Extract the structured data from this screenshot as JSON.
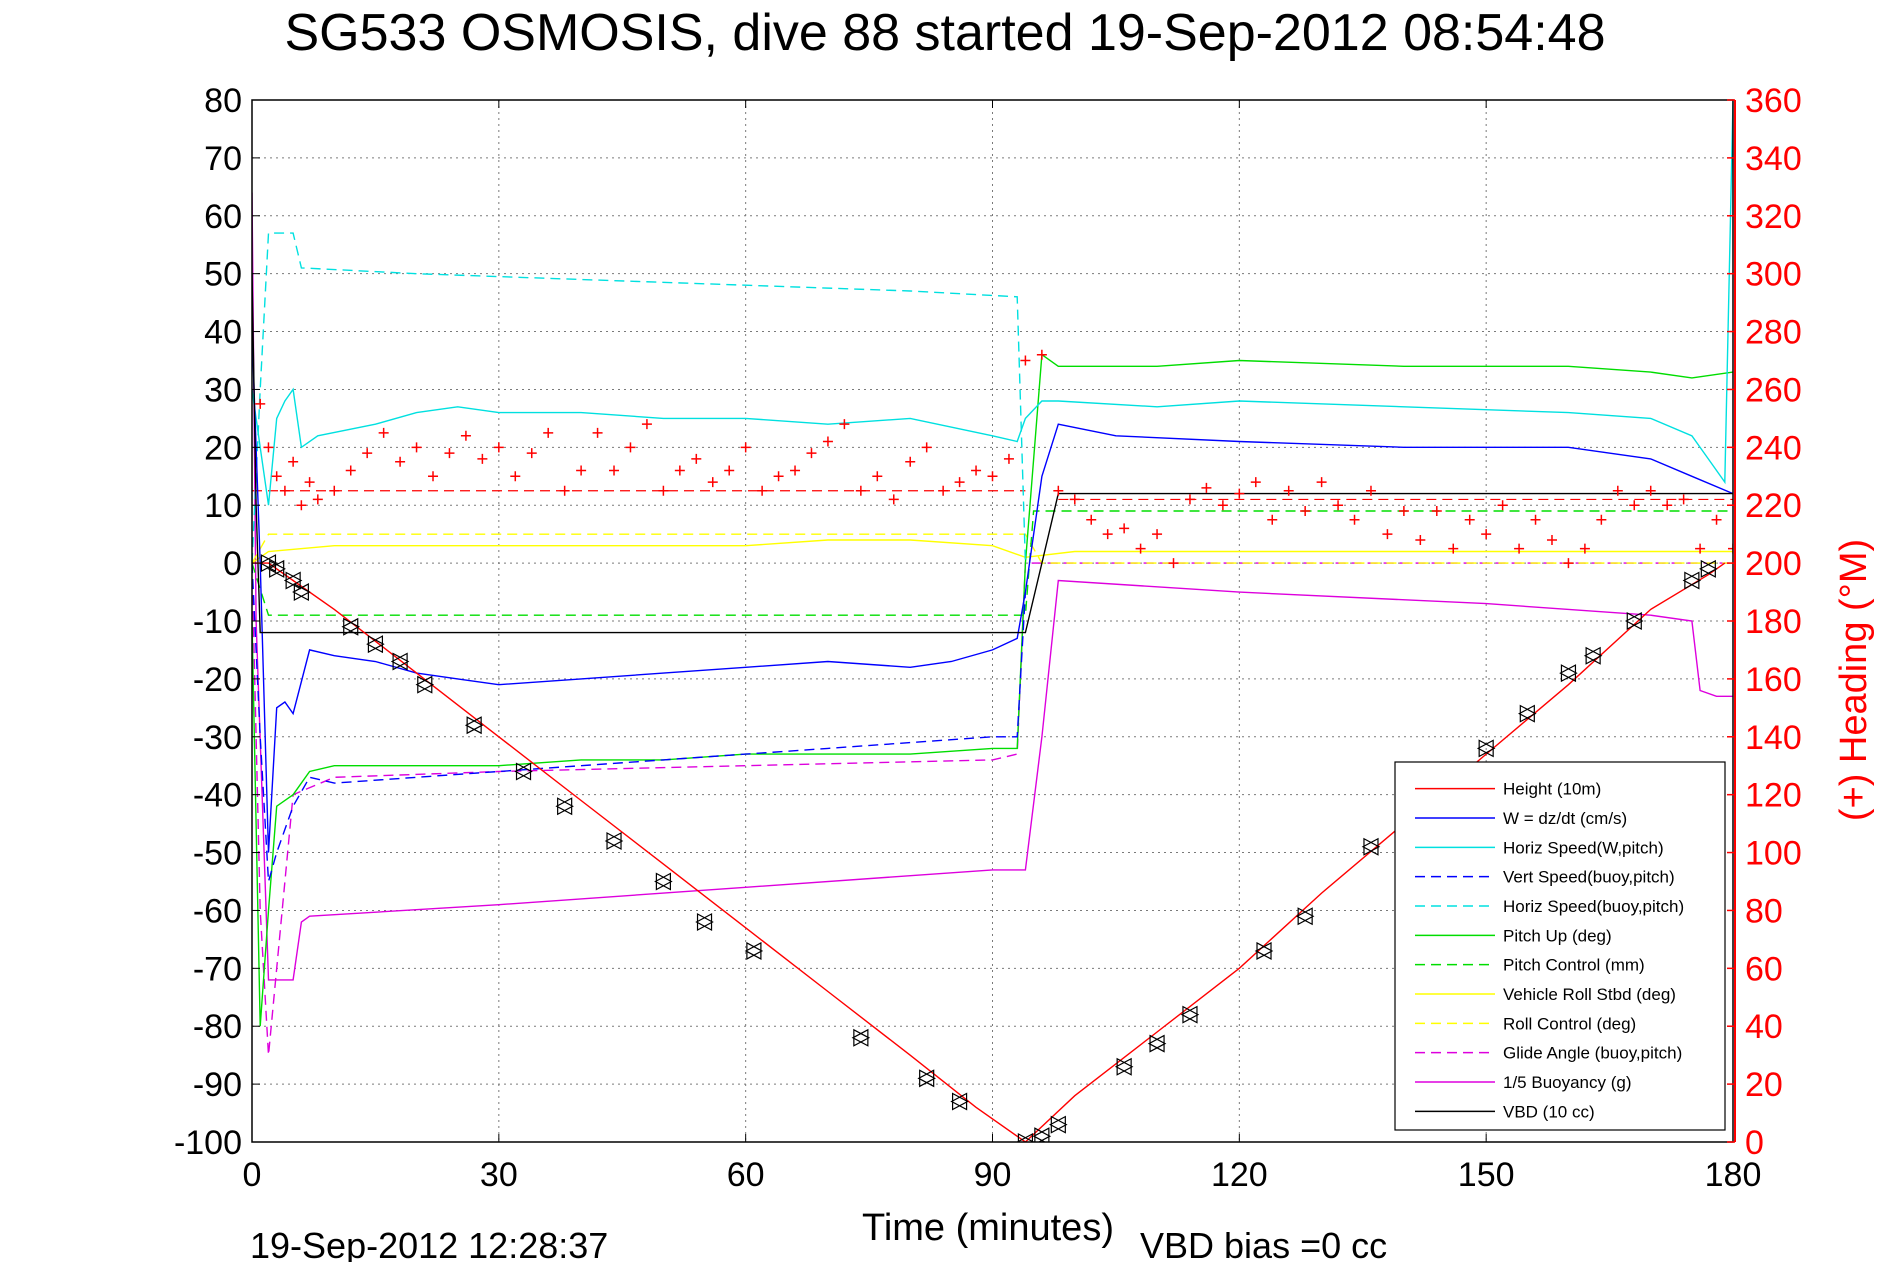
{
  "chart_data": {
    "type": "line",
    "title": "SG533 OSMOSIS, dive 88 started 19-Sep-2012 08:54:48",
    "xlabel": "Time (minutes)",
    "ylabel_right": "(+) Heading (°M)",
    "footer_left": "19-Sep-2012 12:28:37",
    "footer_right": "VBD bias =0 cc",
    "xlim": [
      0,
      180
    ],
    "ylim": [
      -100,
      80
    ],
    "ylim_right": [
      0,
      360
    ],
    "xticks": [
      0,
      30,
      60,
      90,
      120,
      150,
      180
    ],
    "xtick_labels": [
      "0",
      "30",
      "60",
      "90",
      "120",
      "150",
      "180"
    ],
    "yticks": [
      80,
      70,
      60,
      50,
      40,
      30,
      20,
      10,
      0,
      -10,
      -20,
      -30,
      -40,
      -50,
      -60,
      -70,
      -80,
      -90,
      -100
    ],
    "ytick_labels": [
      "80",
      "70",
      "60",
      "50",
      "40",
      "30",
      "20",
      "10",
      "0",
      "-10",
      "-20",
      "-30",
      "-40",
      "-50",
      "-60",
      "-70",
      "-80",
      "-90",
      "-100"
    ],
    "yticks_right": [
      360,
      340,
      320,
      300,
      280,
      260,
      240,
      220,
      200,
      180,
      160,
      140,
      120,
      100,
      80,
      60,
      40,
      20,
      0
    ],
    "ytick_labels_right": [
      "360",
      "340",
      "320",
      "300",
      "280",
      "260",
      "240",
      "220",
      "200",
      "180",
      "160",
      "140",
      "120",
      "100",
      "80",
      "60",
      "40",
      "20",
      "0"
    ],
    "grid": true,
    "legend_position": "bottom-right",
    "series": [
      {
        "name": "Height (10m)",
        "color": "#ff0000",
        "style": "solid",
        "x": [
          0,
          2,
          5,
          10,
          20,
          30,
          40,
          50,
          60,
          70,
          80,
          88,
          94,
          100,
          110,
          120,
          130,
          140,
          150,
          160,
          170,
          177,
          179
        ],
        "y": [
          0,
          0,
          -3,
          -8,
          -19,
          -30,
          -41,
          -52,
          -63,
          -74,
          -85,
          -94,
          -100,
          -92,
          -81,
          -70,
          -57,
          -45,
          -33,
          -21,
          -8,
          -2,
          0
        ]
      },
      {
        "name": "W = dz/dt (cm/s)",
        "color": "#0000ff",
        "style": "solid",
        "x": [
          0,
          1,
          2,
          3,
          4,
          5,
          7,
          10,
          15,
          20,
          25,
          30,
          40,
          50,
          60,
          70,
          80,
          85,
          90,
          93,
          94,
          96,
          98,
          105,
          120,
          140,
          160,
          170,
          175,
          180
        ],
        "y": [
          40,
          0,
          -50,
          -25,
          -24,
          -26,
          -15,
          -16,
          -17,
          -19,
          -20,
          -21,
          -20,
          -19,
          -18,
          -17,
          -18,
          -17,
          -15,
          -13,
          -5,
          15,
          24,
          22,
          21,
          20,
          20,
          18,
          15,
          12
        ]
      },
      {
        "name": "Horiz Speed(W,pitch)",
        "color": "#00e0e0",
        "style": "solid",
        "x": [
          0,
          1,
          2,
          3,
          4,
          5,
          6,
          8,
          15,
          20,
          25,
          30,
          40,
          50,
          60,
          70,
          80,
          90,
          93,
          94,
          96,
          98,
          110,
          120,
          140,
          160,
          170,
          175,
          177,
          179,
          180
        ],
        "y": [
          30,
          20,
          10,
          25,
          28,
          30,
          20,
          22,
          24,
          26,
          27,
          26,
          26,
          25,
          25,
          24,
          25,
          22,
          21,
          25,
          28,
          28,
          27,
          28,
          27,
          26,
          25,
          22,
          18,
          14,
          80
        ]
      },
      {
        "name": "Vert Speed(buoy,pitch)",
        "color": "#0000ff",
        "style": "dashed",
        "x": [
          0,
          1,
          2,
          3,
          5,
          7,
          10,
          20,
          30,
          40,
          50,
          60,
          70,
          80,
          90,
          93,
          94
        ],
        "y": [
          0,
          -30,
          -55,
          -50,
          -42,
          -37,
          -38,
          -37,
          -36,
          -35,
          -34,
          -33,
          -32,
          -31,
          -30,
          -30,
          -5
        ]
      },
      {
        "name": "Horiz Speed(buoy,pitch)",
        "color": "#00e0e0",
        "style": "dashed",
        "x": [
          0,
          1,
          2,
          5,
          6,
          20,
          40,
          60,
          80,
          93,
          94
        ],
        "y": [
          0,
          30,
          57,
          57,
          51,
          50,
          49,
          48,
          47,
          46,
          0
        ]
      },
      {
        "name": "Pitch Up (deg)",
        "color": "#00dd00",
        "style": "solid",
        "x": [
          0,
          1,
          2,
          3,
          5,
          7,
          10,
          20,
          30,
          40,
          50,
          60,
          70,
          80,
          90,
          93,
          94,
          96,
          98,
          110,
          120,
          140,
          160,
          170,
          175,
          180
        ],
        "y": [
          -10,
          -80,
          -60,
          -42,
          -40,
          -36,
          -35,
          -35,
          -35,
          -34,
          -34,
          -33,
          -33,
          -33,
          -32,
          -32,
          0,
          36,
          34,
          34,
          35,
          34,
          34,
          33,
          32,
          33
        ]
      },
      {
        "name": "Pitch Control (mm)",
        "color": "#00dd00",
        "style": "dashed",
        "x": [
          0,
          2,
          94,
          95,
          180
        ],
        "y": [
          0,
          -9,
          -9,
          9,
          9
        ]
      },
      {
        "name": "Vehicle Roll Stbd (deg)",
        "color": "#ffff00",
        "style": "solid",
        "x": [
          0,
          2,
          10,
          20,
          30,
          40,
          50,
          60,
          70,
          80,
          90,
          94,
          100,
          110,
          120,
          140,
          160,
          170,
          180
        ],
        "y": [
          0,
          2,
          3,
          3,
          3,
          3,
          3,
          3,
          4,
          4,
          3,
          1,
          2,
          2,
          2,
          2,
          2,
          2,
          2
        ]
      },
      {
        "name": "Roll Control (deg)",
        "color": "#ffff00",
        "style": "dashed",
        "x": [
          0,
          2,
          94,
          96,
          180
        ],
        "y": [
          0,
          5,
          5,
          0,
          0
        ]
      },
      {
        "name": "Glide Angle (buoy,pitch)",
        "color": "#dd00dd",
        "style": "dashed",
        "x": [
          0,
          1,
          2,
          5,
          10,
          30,
          60,
          90,
          93,
          94,
          96,
          180
        ],
        "y": [
          0,
          -60,
          -85,
          -40,
          -37,
          -36,
          -35,
          -34,
          -33,
          0,
          0,
          0
        ]
      },
      {
        "name": "1/5 Buoyancy (g)",
        "color": "#dd00dd",
        "style": "solid",
        "x": [
          0,
          0.5,
          2,
          2.5,
          5,
          6,
          7,
          30,
          60,
          90,
          94,
          96,
          98,
          120,
          150,
          170,
          175,
          176,
          178,
          180
        ],
        "y": [
          64,
          -10,
          -72,
          -72,
          -72,
          -62,
          -61,
          -59,
          -56,
          -53,
          -53,
          -30,
          -3,
          -5,
          -7,
          -9,
          -10,
          -22,
          -23,
          -23
        ]
      },
      {
        "name": "VBD (10 cc)",
        "color": "#000000",
        "style": "solid",
        "x": [
          0,
          0.5,
          1,
          2,
          94,
          96,
          98,
          180
        ],
        "y": [
          50,
          10,
          -12,
          -12,
          -12,
          0,
          12,
          12
        ]
      }
    ],
    "heading_markers": {
      "name": "(+) Heading (°M)",
      "color": "#ff0000",
      "marker": "+",
      "x": [
        1,
        2,
        3,
        4,
        5,
        6,
        7,
        8,
        10,
        12,
        14,
        16,
        18,
        20,
        22,
        24,
        26,
        28,
        30,
        32,
        34,
        36,
        38,
        40,
        42,
        44,
        46,
        48,
        50,
        52,
        54,
        56,
        58,
        60,
        62,
        64,
        66,
        68,
        70,
        72,
        74,
        76,
        78,
        80,
        82,
        84,
        86,
        88,
        90,
        92,
        94,
        96,
        98,
        100,
        102,
        104,
        106,
        108,
        110,
        112,
        114,
        116,
        118,
        120,
        122,
        124,
        126,
        128,
        130,
        132,
        134,
        136,
        138,
        140,
        142,
        144,
        146,
        148,
        150,
        152,
        154,
        156,
        158,
        160,
        162,
        164,
        166,
        168,
        170,
        172,
        174,
        176,
        178,
        180
      ],
      "y": [
        255,
        240,
        230,
        225,
        235,
        220,
        228,
        222,
        225,
        232,
        238,
        245,
        235,
        240,
        230,
        238,
        244,
        236,
        240,
        230,
        238,
        245,
        225,
        232,
        245,
        232,
        240,
        248,
        225,
        232,
        236,
        228,
        232,
        240,
        225,
        230,
        232,
        238,
        242,
        248,
        225,
        230,
        222,
        235,
        240,
        225,
        228,
        232,
        230,
        236,
        270,
        272,
        225,
        222,
        215,
        210,
        212,
        205,
        210,
        200,
        222,
        226,
        220,
        224,
        228,
        215,
        225,
        218,
        228,
        220,
        215,
        225,
        210,
        218,
        208,
        218,
        205,
        215,
        210,
        220,
        205,
        215,
        208,
        200,
        205,
        215,
        225,
        220,
        225,
        220,
        222,
        205,
        215,
        205
      ]
    },
    "reference_lines": [
      {
        "color": "#ff0000",
        "style": "dashed",
        "axis": "right",
        "x": [
          0,
          94
        ],
        "y": 225
      },
      {
        "color": "#ff0000",
        "style": "dashed",
        "axis": "right",
        "x": [
          98,
          180
        ],
        "y": 222
      }
    ],
    "triangle_markers": {
      "color": "#000000",
      "marker": "triangle",
      "x": [
        2,
        3,
        5,
        6,
        12,
        15,
        18,
        21,
        27,
        33,
        38,
        44,
        50,
        55,
        61,
        74,
        82,
        86,
        94,
        96,
        98,
        106,
        110,
        114,
        123,
        128,
        136,
        150,
        155,
        160,
        163,
        168,
        175,
        177
      ],
      "y": [
        0,
        -1,
        -3,
        -5,
        -11,
        -14,
        -17,
        -21,
        -28,
        -36,
        -42,
        -48,
        -55,
        -62,
        -67,
        -82,
        -89,
        -93,
        -100,
        -99,
        -97,
        -87,
        -83,
        -78,
        -67,
        -61,
        -49,
        -32,
        -26,
        -19,
        -16,
        -10,
        -3,
        -1
      ]
    }
  }
}
